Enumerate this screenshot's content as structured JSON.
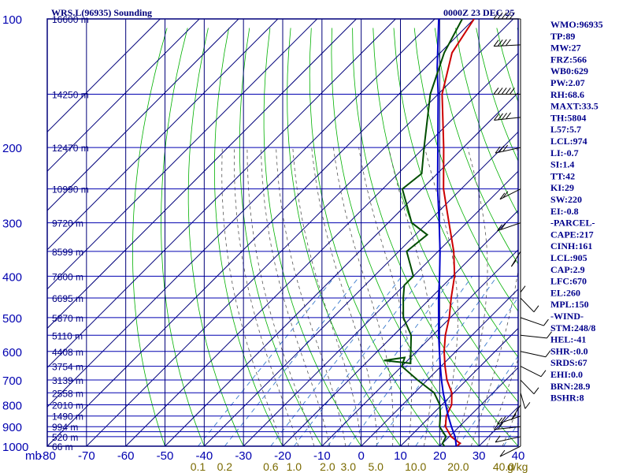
{
  "header": {
    "station_title": "WRS.L(96935) Sounding",
    "valid_time": "0000Z 23 DEC 25"
  },
  "axis": {
    "unit_label": "mb",
    "mixing_unit": "g/kg"
  },
  "chart_data": {
    "type": "line",
    "title": "WRS.L(96935) Sounding",
    "subtitle": "0000Z 23 DEC 25",
    "xlabel": "",
    "ylabel": "mb",
    "x_unit_note": "temperature (C) at bottom axis, log-pressure vertical axis",
    "xlim": [
      -80,
      40
    ],
    "ylim": [
      1000,
      100
    ],
    "y_scale": "log",
    "x_ticks": [
      "-80",
      "-70",
      "-60",
      "-50",
      "-40",
      "-30",
      "-20",
      "-10",
      "0",
      "10",
      "20",
      "30",
      "40"
    ],
    "pressure_ticks": [
      "100",
      "200",
      "300",
      "400",
      "500",
      "600",
      "700",
      "800",
      "900",
      "1000"
    ],
    "pressure_lines": [
      100,
      150,
      200,
      250,
      300,
      350,
      400,
      450,
      500,
      550,
      600,
      650,
      700,
      750,
      800,
      850,
      900,
      925,
      950,
      1000
    ],
    "height_labels": [
      {
        "p": 100,
        "text": "16600 m"
      },
      {
        "p": 150,
        "text": "14250 m"
      },
      {
        "p": 200,
        "text": "12470 m"
      },
      {
        "p": 250,
        "text": "10990 m"
      },
      {
        "p": 300,
        "text": "9720 m"
      },
      {
        "p": 350,
        "text": "8599 m"
      },
      {
        "p": 400,
        "text": "7600 m"
      },
      {
        "p": 450,
        "text": "6695 m"
      },
      {
        "p": 500,
        "text": "5870 m"
      },
      {
        "p": 550,
        "text": "5110 m"
      },
      {
        "p": 600,
        "text": "4408 m"
      },
      {
        "p": 650,
        "text": "3754 m"
      },
      {
        "p": 700,
        "text": "3139 m"
      },
      {
        "p": 750,
        "text": "2558 m"
      },
      {
        "p": 800,
        "text": "2010 m"
      },
      {
        "p": 850,
        "text": "1490 m"
      },
      {
        "p": 900,
        "text": "994 m"
      },
      {
        "p": 950,
        "text": "520 m"
      },
      {
        "p": 1000,
        "text": "66 m"
      }
    ],
    "mixing_ratio_labels": [
      "0.1",
      "0.2",
      "0.6",
      "1.0",
      "2.0",
      "3.0",
      "5.0",
      "10.0",
      "20.0",
      "40.0"
    ],
    "mixing_ratio_values": [
      0.1,
      0.2,
      0.6,
      1.0,
      2.0,
      3.0,
      5.0,
      10.0,
      20.0,
      40.0
    ],
    "series": [
      {
        "color": "#cc0000",
        "points": [
          [
            1005,
            24.3
          ],
          [
            985,
            24.5
          ],
          [
            950,
            20.5
          ],
          [
            900,
            16.5
          ],
          [
            850,
            14
          ],
          [
            800,
            12.5
          ],
          [
            750,
            9.5
          ],
          [
            700,
            5
          ],
          [
            650,
            1
          ],
          [
            600,
            -3
          ],
          [
            550,
            -6.8
          ],
          [
            500,
            -10.3
          ],
          [
            450,
            -14.8
          ],
          [
            400,
            -19.5
          ],
          [
            350,
            -26
          ],
          [
            300,
            -34.5
          ],
          [
            250,
            -44.5
          ],
          [
            200,
            -55
          ],
          [
            150,
            -69
          ],
          [
            120,
            -77
          ],
          [
            100,
            -80
          ]
        ]
      },
      {
        "color": "#0000cc",
        "points": [
          [
            1005,
            24.5
          ],
          [
            950,
            21.5
          ],
          [
            900,
            18
          ],
          [
            850,
            14.5
          ],
          [
            800,
            11
          ],
          [
            750,
            7.3
          ],
          [
            700,
            3.6
          ],
          [
            650,
            -0.2
          ],
          [
            600,
            -4.2
          ],
          [
            550,
            -8.5
          ],
          [
            500,
            -13
          ],
          [
            450,
            -18
          ],
          [
            400,
            -23.3
          ],
          [
            350,
            -29.5
          ],
          [
            300,
            -37
          ],
          [
            250,
            -46
          ],
          [
            200,
            -56.5
          ],
          [
            150,
            -70
          ],
          [
            130,
            -77
          ],
          [
            100,
            -89
          ]
        ]
      },
      {
        "color": "#004d00",
        "points": [
          [
            1000,
            21.2
          ],
          [
            985,
            20
          ],
          [
            950,
            19.2
          ],
          [
            900,
            15
          ],
          [
            850,
            12.5
          ],
          [
            800,
            9.5
          ],
          [
            750,
            5
          ],
          [
            700,
            -2.5
          ],
          [
            650,
            -10
          ],
          [
            620,
            -11.5
          ],
          [
            630,
            -16
          ],
          [
            640,
            -8.5
          ],
          [
            600,
            -11.5
          ],
          [
            550,
            -15.5
          ],
          [
            500,
            -22
          ],
          [
            450,
            -27
          ],
          [
            420,
            -30
          ],
          [
            400,
            -30
          ],
          [
            350,
            -38
          ],
          [
            320,
            -37
          ],
          [
            300,
            -44
          ],
          [
            250,
            -55
          ],
          [
            230,
            -54
          ],
          [
            200,
            -60
          ],
          [
            150,
            -72
          ],
          [
            120,
            -79
          ],
          [
            100,
            -83
          ]
        ]
      }
    ]
  },
  "indices": {
    "items": [
      "WMO:96935",
      "TP:89",
      "MW:27",
      "FRZ:566",
      "WB0:629",
      "PW:2.07",
      "RH:68.6",
      "MAXT:33.5",
      "TH:5804",
      "L57:5.7",
      "LCL:974",
      "LI:-0.7",
      "SI:1.4",
      "TT:42",
      "KI:29",
      "SW:220",
      "EI:-0.8",
      "-PARCEL-",
      "CAPE:217",
      "CINH:161",
      "LCL:905",
      "CAP:2.9",
      "LFC:670",
      "EL:260",
      "MPL:150",
      "-WIND-",
      "STM:248/8",
      "HEL:-41",
      "SHR-:0.0",
      "SRDS:67",
      "EHI:0.0",
      "BRN:28.9",
      "BSHR:8"
    ]
  },
  "wind_profile": {
    "barbs": [
      {
        "p": 100,
        "dir": 270,
        "spd": 45
      },
      {
        "p": 115,
        "dir": 265,
        "spd": 40
      },
      {
        "p": 150,
        "dir": 270,
        "spd": 45
      },
      {
        "p": 170,
        "dir": 260,
        "spd": 35
      },
      {
        "p": 200,
        "dir": 250,
        "spd": 30
      },
      {
        "p": 250,
        "dir": 230,
        "spd": 20
      },
      {
        "p": 300,
        "dir": 240,
        "spd": 15
      },
      {
        "p": 350,
        "dir": 200,
        "spd": 10
      },
      {
        "p": 400,
        "dir": 180,
        "spd": 10
      },
      {
        "p": 450,
        "dir": 150,
        "spd": 10
      },
      {
        "p": 500,
        "dir": 120,
        "spd": 10
      },
      {
        "p": 550,
        "dir": 100,
        "spd": 10
      },
      {
        "p": 600,
        "dir": 110,
        "spd": 10
      },
      {
        "p": 650,
        "dir": 130,
        "spd": 10
      },
      {
        "p": 700,
        "dir": 150,
        "spd": 10
      },
      {
        "p": 750,
        "dir": 170,
        "spd": 10
      },
      {
        "p": 800,
        "dir": 200,
        "spd": 10
      },
      {
        "p": 850,
        "dir": 240,
        "spd": 15
      },
      {
        "p": 900,
        "dir": 260,
        "spd": 15
      },
      {
        "p": 950,
        "dir": 250,
        "spd": 10
      },
      {
        "p": 1000,
        "dir": 230,
        "spd": 5
      }
    ]
  },
  "colors": {
    "frame": "#00007a",
    "isobar": "#0000b0",
    "isotherm": "#00007a",
    "dry_adiabat": "#00b000",
    "moist_adiabat": "#555555",
    "mixing_ratio": "#3a7acc"
  }
}
